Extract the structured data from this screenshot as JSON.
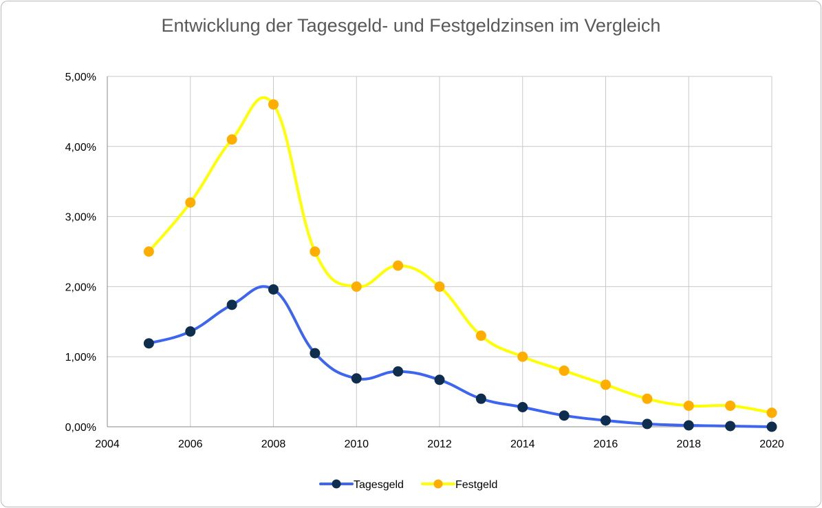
{
  "chart_data": {
    "type": "line",
    "title": "Entwicklung der Tagesgeld- und Festgeldzinsen im Vergleich",
    "xlabel": "",
    "ylabel": "",
    "xlim": [
      2004,
      2020
    ],
    "ylim": [
      0,
      5
    ],
    "x_ticks": [
      "2004",
      "2006",
      "2008",
      "2010",
      "2012",
      "2014",
      "2016",
      "2018",
      "2020"
    ],
    "x_tick_values": [
      2004,
      2006,
      2008,
      2010,
      2012,
      2014,
      2016,
      2018,
      2020
    ],
    "y_ticks": [
      "0,00%",
      "1,00%",
      "2,00%",
      "3,00%",
      "4,00%",
      "5,00%"
    ],
    "y_tick_values": [
      0,
      1,
      2,
      3,
      4,
      5
    ],
    "grid": true,
    "legend_position": "bottom",
    "x": [
      2005,
      2006,
      2007,
      2008,
      2009,
      2010,
      2011,
      2012,
      2013,
      2014,
      2015,
      2016,
      2017,
      2018,
      2019,
      2020
    ],
    "series": [
      {
        "name": "Tagesgeld",
        "line_color": "#3d65f0",
        "marker_color": "#0f2d4d",
        "values": [
          1.19,
          1.36,
          1.74,
          1.96,
          1.05,
          0.69,
          0.79,
          0.67,
          0.4,
          0.28,
          0.16,
          0.09,
          0.04,
          0.02,
          0.01,
          0.0
        ]
      },
      {
        "name": "Festgeld",
        "line_color": "#ffff00",
        "marker_color": "#ffae00",
        "values": [
          2.5,
          3.2,
          4.1,
          4.6,
          2.5,
          2.0,
          2.3,
          2.0,
          1.3,
          1.0,
          0.8,
          0.6,
          0.4,
          0.3,
          0.3,
          0.2
        ]
      }
    ]
  }
}
